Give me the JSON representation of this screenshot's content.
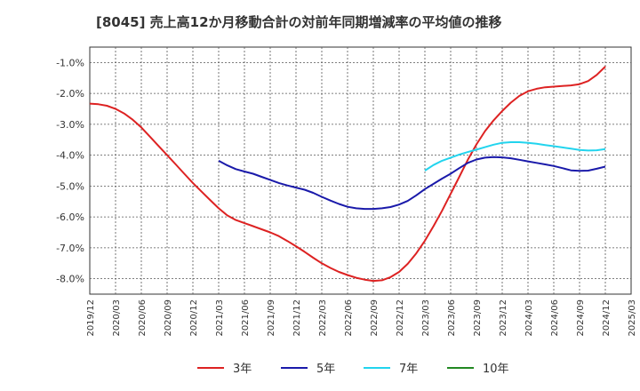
{
  "chart_data": {
    "type": "line",
    "title": "[8045]  売上高12か月移動合計の対前年同期増減率の平均値の推移",
    "xlabel": "",
    "ylabel": "",
    "x_ticks": [
      "2019/12",
      "2020/03",
      "2020/06",
      "2020/09",
      "2020/12",
      "2021/03",
      "2021/06",
      "2021/09",
      "2021/12",
      "2022/03",
      "2022/06",
      "2022/09",
      "2022/12",
      "2023/03",
      "2023/06",
      "2023/09",
      "2023/12",
      "2024/03",
      "2024/06",
      "2024/09",
      "2024/12",
      "2025/03"
    ],
    "y_ticks": [
      "-1.0%",
      "-2.0%",
      "-3.0%",
      "-4.0%",
      "-5.0%",
      "-6.0%",
      "-7.0%",
      "-8.0%"
    ],
    "ylim": [
      -8.5,
      -0.5
    ],
    "grid": true,
    "legend_position": "bottom",
    "series": [
      {
        "name": "3年",
        "color": "#dd2222",
        "x": [
          "2019/12",
          "2020/01",
          "2020/02",
          "2020/03",
          "2020/04",
          "2020/05",
          "2020/06",
          "2020/07",
          "2020/08",
          "2020/09",
          "2020/10",
          "2020/11",
          "2020/12",
          "2021/01",
          "2021/02",
          "2021/03",
          "2021/04",
          "2021/05",
          "2021/06",
          "2021/07",
          "2021/08",
          "2021/09",
          "2021/10",
          "2021/11",
          "2021/12",
          "2022/01",
          "2022/02",
          "2022/03",
          "2022/04",
          "2022/05",
          "2022/06",
          "2022/07",
          "2022/08",
          "2022/09",
          "2022/10",
          "2022/11",
          "2022/12",
          "2023/01",
          "2023/02",
          "2023/03",
          "2023/04",
          "2023/05",
          "2023/06",
          "2023/07",
          "2023/08",
          "2023/09",
          "2023/10",
          "2023/11",
          "2023/12",
          "2024/01",
          "2024/02",
          "2024/03",
          "2024/04",
          "2024/05",
          "2024/06",
          "2024/07",
          "2024/08",
          "2024/09",
          "2024/10",
          "2024/11",
          "2024/12"
        ],
        "values": [
          -2.33,
          -2.35,
          -2.4,
          -2.5,
          -2.65,
          -2.85,
          -3.1,
          -3.4,
          -3.7,
          -4.0,
          -4.3,
          -4.6,
          -4.9,
          -5.18,
          -5.45,
          -5.72,
          -5.95,
          -6.1,
          -6.2,
          -6.3,
          -6.4,
          -6.5,
          -6.62,
          -6.78,
          -6.95,
          -7.13,
          -7.32,
          -7.5,
          -7.65,
          -7.78,
          -7.88,
          -7.97,
          -8.03,
          -8.07,
          -8.05,
          -7.95,
          -7.78,
          -7.52,
          -7.18,
          -6.77,
          -6.3,
          -5.8,
          -5.25,
          -4.7,
          -4.15,
          -3.65,
          -3.22,
          -2.87,
          -2.57,
          -2.3,
          -2.08,
          -1.93,
          -1.85,
          -1.8,
          -1.78,
          -1.76,
          -1.74,
          -1.7,
          -1.6,
          -1.4,
          -1.13
        ]
      },
      {
        "name": "5年",
        "color": "#1a1aaa",
        "x": [
          "2021/03",
          "2021/04",
          "2021/05",
          "2021/06",
          "2021/07",
          "2021/08",
          "2021/09",
          "2021/10",
          "2021/11",
          "2021/12",
          "2022/01",
          "2022/02",
          "2022/03",
          "2022/04",
          "2022/05",
          "2022/06",
          "2022/07",
          "2022/08",
          "2022/09",
          "2022/10",
          "2022/11",
          "2022/12",
          "2023/01",
          "2023/02",
          "2023/03",
          "2023/04",
          "2023/05",
          "2023/06",
          "2023/07",
          "2023/08",
          "2023/09",
          "2023/10",
          "2023/11",
          "2023/12",
          "2024/01",
          "2024/02",
          "2024/03",
          "2024/04",
          "2024/05",
          "2024/06",
          "2024/07",
          "2024/08",
          "2024/09",
          "2024/10",
          "2024/11",
          "2024/12"
        ],
        "values": [
          -4.18,
          -4.33,
          -4.45,
          -4.53,
          -4.6,
          -4.7,
          -4.8,
          -4.9,
          -4.98,
          -5.05,
          -5.12,
          -5.22,
          -5.35,
          -5.47,
          -5.58,
          -5.67,
          -5.72,
          -5.74,
          -5.74,
          -5.72,
          -5.68,
          -5.6,
          -5.48,
          -5.3,
          -5.1,
          -4.93,
          -4.76,
          -4.6,
          -4.42,
          -4.25,
          -4.14,
          -4.08,
          -4.06,
          -4.07,
          -4.1,
          -4.15,
          -4.2,
          -4.25,
          -4.3,
          -4.35,
          -4.42,
          -4.49,
          -4.51,
          -4.5,
          -4.44,
          -4.37
        ]
      },
      {
        "name": "7年",
        "color": "#22d4ee",
        "x": [
          "2023/03",
          "2023/04",
          "2023/05",
          "2023/06",
          "2023/07",
          "2023/08",
          "2023/09",
          "2023/10",
          "2023/11",
          "2023/12",
          "2024/01",
          "2024/02",
          "2024/03",
          "2024/04",
          "2024/05",
          "2024/06",
          "2024/07",
          "2024/08",
          "2024/09",
          "2024/10",
          "2024/11",
          "2024/12"
        ],
        "values": [
          -4.5,
          -4.32,
          -4.18,
          -4.08,
          -3.98,
          -3.9,
          -3.82,
          -3.74,
          -3.66,
          -3.6,
          -3.58,
          -3.58,
          -3.6,
          -3.63,
          -3.67,
          -3.71,
          -3.75,
          -3.79,
          -3.83,
          -3.85,
          -3.84,
          -3.8
        ]
      },
      {
        "name": "10年",
        "color": "#228822",
        "x": [],
        "values": []
      }
    ]
  }
}
